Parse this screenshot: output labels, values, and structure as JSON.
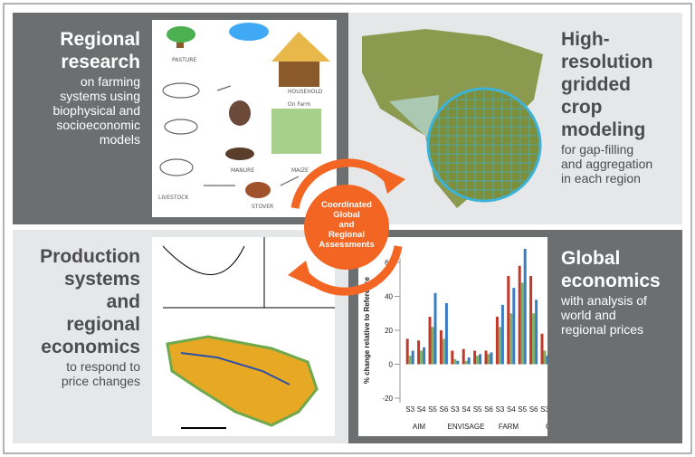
{
  "panels": [
    {
      "title": [
        "Regional",
        "research"
      ],
      "body": [
        "on farming",
        "systems using",
        "biophysical and",
        "socioeconomic",
        "models"
      ]
    },
    {
      "title": [
        "High-",
        "resolution",
        "gridded",
        "crop",
        "modeling"
      ],
      "body": [
        "for gap-filling",
        "and aggregation",
        "in each region"
      ]
    },
    {
      "title": [
        "Production",
        "systems",
        "and",
        "regional",
        "economics"
      ],
      "body": [
        "to respond to",
        "price changes"
      ]
    },
    {
      "title": [
        "Global",
        "economics"
      ],
      "body": [
        "with analysis of",
        "world and",
        "regional prices"
      ]
    }
  ],
  "center": [
    "Coordinated",
    "Global",
    "and",
    "Regional",
    "Assessments"
  ],
  "sketch_labels": [
    "PASTURE",
    "HOUSEHOLD",
    "On Farm",
    "MANURE",
    "MAIZE",
    "LIVESTOCK",
    "STOVER"
  ],
  "chart_data": {
    "type": "bar",
    "y_label": "% change relative to Reference",
    "categories": [
      "S3",
      "S4",
      "S5",
      "S6",
      "S3",
      "S4",
      "S5",
      "S6",
      "S3",
      "S4",
      "S5",
      "S6",
      "S3"
    ],
    "groups": [
      "AIM",
      "ENVISAGE",
      "FARM",
      "G"
    ],
    "series": [
      {
        "color": "#c0392b",
        "values": [
          15,
          14,
          28,
          20,
          8,
          9,
          8,
          8,
          28,
          52,
          58,
          52,
          18
        ]
      },
      {
        "color": "#7fb069",
        "values": [
          5,
          8,
          22,
          15,
          3,
          2,
          5,
          6,
          22,
          30,
          48,
          30,
          8
        ]
      },
      {
        "color": "#3a7dc0",
        "values": [
          8,
          10,
          42,
          36,
          2,
          4,
          6,
          7,
          35,
          45,
          68,
          38,
          5
        ]
      }
    ],
    "ylim": [
      -20,
      60
    ],
    "yticks": [
      -20,
      0,
      20,
      40,
      60
    ]
  }
}
